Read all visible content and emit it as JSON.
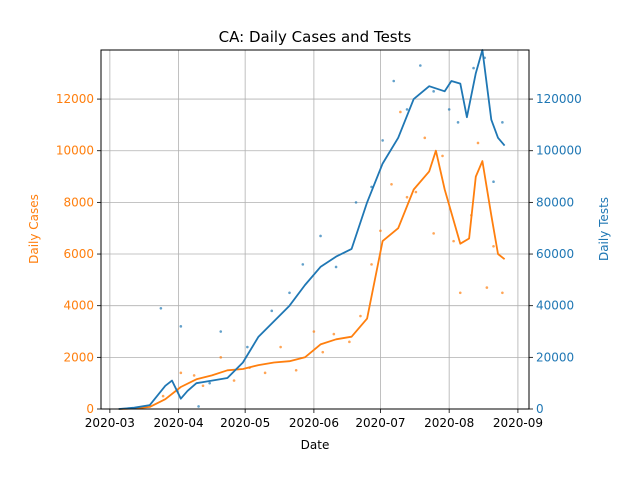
{
  "chart_data": {
    "type": "line",
    "title": "CA: Daily Cases and Tests",
    "xlabel": "Date",
    "ylabel_left": "Daily Cases",
    "ylabel_right": "Daily Tests",
    "x_ticks": [
      "2020-03",
      "2020-04",
      "2020-05",
      "2020-06",
      "2020-07",
      "2020-08",
      "2020-09"
    ],
    "y_left_ticks": [
      "0",
      "2000",
      "4000",
      "6000",
      "8000",
      "10000",
      "12000"
    ],
    "y_right_ticks": [
      "0",
      "20000",
      "40000",
      "60000",
      "80000",
      "100000",
      "120000"
    ],
    "x_range": [
      "2020-02-26",
      "2020-09-06"
    ],
    "y_left_range": [
      0,
      13900
    ],
    "y_right_range": [
      0,
      139000
    ],
    "grid": true,
    "colors": {
      "cases": "#ff7f0e",
      "tests": "#1f77b4"
    },
    "series": [
      {
        "axis": "left",
        "color": "#ff7f0e",
        "x": [
          "2020-03-05",
          "2020-03-12",
          "2020-03-19",
          "2020-03-26",
          "2020-04-02",
          "2020-04-09",
          "2020-04-16",
          "2020-04-23",
          "2020-04-30",
          "2020-05-07",
          "2020-05-14",
          "2020-05-21",
          "2020-05-28",
          "2020-06-04",
          "2020-06-11",
          "2020-06-18",
          "2020-06-25",
          "2020-07-02",
          "2020-07-09",
          "2020-07-16",
          "2020-07-23",
          "2020-07-26",
          "2020-07-30",
          "2020-08-06",
          "2020-08-10",
          "2020-08-13",
          "2020-08-16",
          "2020-08-20",
          "2020-08-23",
          "2020-08-26"
        ],
        "values": [
          0,
          20,
          80,
          380,
          850,
          1150,
          1300,
          1500,
          1550,
          1700,
          1800,
          1850,
          2000,
          2500,
          2700,
          2800,
          3500,
          6500,
          7000,
          8500,
          9200,
          10000,
          8500,
          6400,
          6600,
          9000,
          9600,
          7500,
          6000,
          5800
        ]
      },
      {
        "axis": "right",
        "color": "#1f77b4",
        "x": [
          "2020-03-05",
          "2020-03-12",
          "2020-03-19",
          "2020-03-26",
          "2020-03-29",
          "2020-04-02",
          "2020-04-05",
          "2020-04-09",
          "2020-04-16",
          "2020-04-23",
          "2020-04-30",
          "2020-05-07",
          "2020-05-14",
          "2020-05-21",
          "2020-05-28",
          "2020-06-04",
          "2020-06-11",
          "2020-06-18",
          "2020-06-25",
          "2020-07-02",
          "2020-07-09",
          "2020-07-16",
          "2020-07-23",
          "2020-07-30",
          "2020-08-02",
          "2020-08-06",
          "2020-08-09",
          "2020-08-13",
          "2020-08-16",
          "2020-08-20",
          "2020-08-23",
          "2020-08-26"
        ],
        "values": [
          0,
          500,
          1500,
          9000,
          11000,
          4000,
          7000,
          10000,
          11000,
          12000,
          18000,
          28000,
          34000,
          40000,
          48000,
          55000,
          59000,
          62000,
          80000,
          95000,
          105000,
          120000,
          125000,
          123000,
          127000,
          126000,
          113000,
          130000,
          139000,
          112000,
          105000,
          102000
        ]
      }
    ],
    "scatter_cases": {
      "x": [
        "2020-03-25",
        "2020-04-02",
        "2020-04-08",
        "2020-04-12",
        "2020-04-20",
        "2020-04-26",
        "2020-05-03",
        "2020-05-10",
        "2020-05-17",
        "2020-05-24",
        "2020-06-01",
        "2020-06-05",
        "2020-06-10",
        "2020-06-17",
        "2020-06-22",
        "2020-06-27",
        "2020-07-01",
        "2020-07-06",
        "2020-07-10",
        "2020-07-13",
        "2020-07-17",
        "2020-07-21",
        "2020-07-25",
        "2020-07-29",
        "2020-08-03",
        "2020-08-06",
        "2020-08-11",
        "2020-08-14",
        "2020-08-18",
        "2020-08-21",
        "2020-08-25"
      ],
      "values": [
        500,
        1400,
        1300,
        900,
        2000,
        1100,
        1600,
        1400,
        2400,
        1500,
        3000,
        2200,
        2900,
        2600,
        3600,
        5600,
        6900,
        8700,
        11500,
        8200,
        8400,
        10500,
        6800,
        9800,
        6500,
        4500,
        7500,
        10300,
        4700,
        6300,
        4500
      ]
    },
    "scatter_tests": {
      "x": [
        "2020-03-24",
        "2020-04-02",
        "2020-04-10",
        "2020-04-15",
        "2020-04-20",
        "2020-05-02",
        "2020-05-13",
        "2020-05-21",
        "2020-05-27",
        "2020-06-04",
        "2020-06-11",
        "2020-06-20",
        "2020-06-27",
        "2020-07-02",
        "2020-07-07",
        "2020-07-13",
        "2020-07-19",
        "2020-07-25",
        "2020-08-01",
        "2020-08-05",
        "2020-08-12",
        "2020-08-17",
        "2020-08-21",
        "2020-08-25"
      ],
      "values": [
        39000,
        32000,
        1000,
        10000,
        30000,
        24000,
        38000,
        45000,
        56000,
        67000,
        55000,
        80000,
        86000,
        104000,
        127000,
        116000,
        133000,
        123000,
        116000,
        111000,
        132000,
        136000,
        88000,
        111000
      ]
    }
  }
}
